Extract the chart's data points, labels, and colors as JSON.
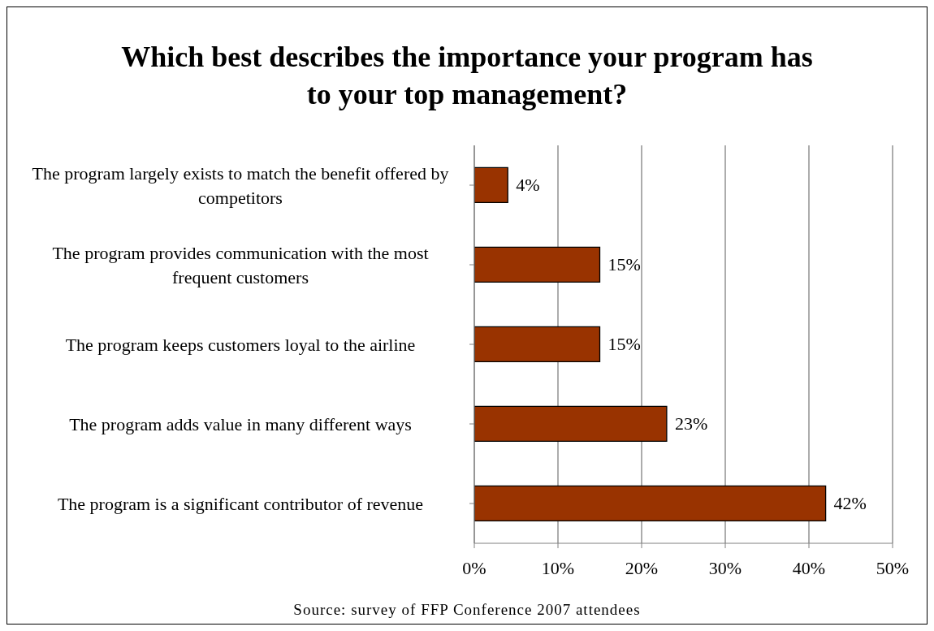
{
  "chart_data": {
    "type": "bar",
    "orientation": "horizontal",
    "title": "Which best describes the importance your program has to your top management?",
    "categories": [
      "The program largely exists to match the benefit offered by competitors",
      "The program provides communication with the most frequent customers",
      "The program keeps customers loyal to the airline",
      "The program adds value in many different ways",
      "The program is a significant contributor of revenue"
    ],
    "values": [
      4,
      15,
      15,
      23,
      42
    ],
    "value_labels": [
      "4%",
      "15%",
      "15%",
      "23%",
      "42%"
    ],
    "color": "#993300",
    "xlim": [
      0,
      50
    ],
    "xticks": [
      {
        "value": 0,
        "label": "0%"
      },
      {
        "value": 10,
        "label": "10%"
      },
      {
        "value": 20,
        "label": "20%"
      },
      {
        "value": 30,
        "label": "30%"
      },
      {
        "value": 40,
        "label": "40%"
      },
      {
        "value": 50,
        "label": "50%"
      }
    ],
    "grid": "x",
    "annotations": [
      "Source:  survey of FFP Conference 2007 attendees"
    ]
  }
}
